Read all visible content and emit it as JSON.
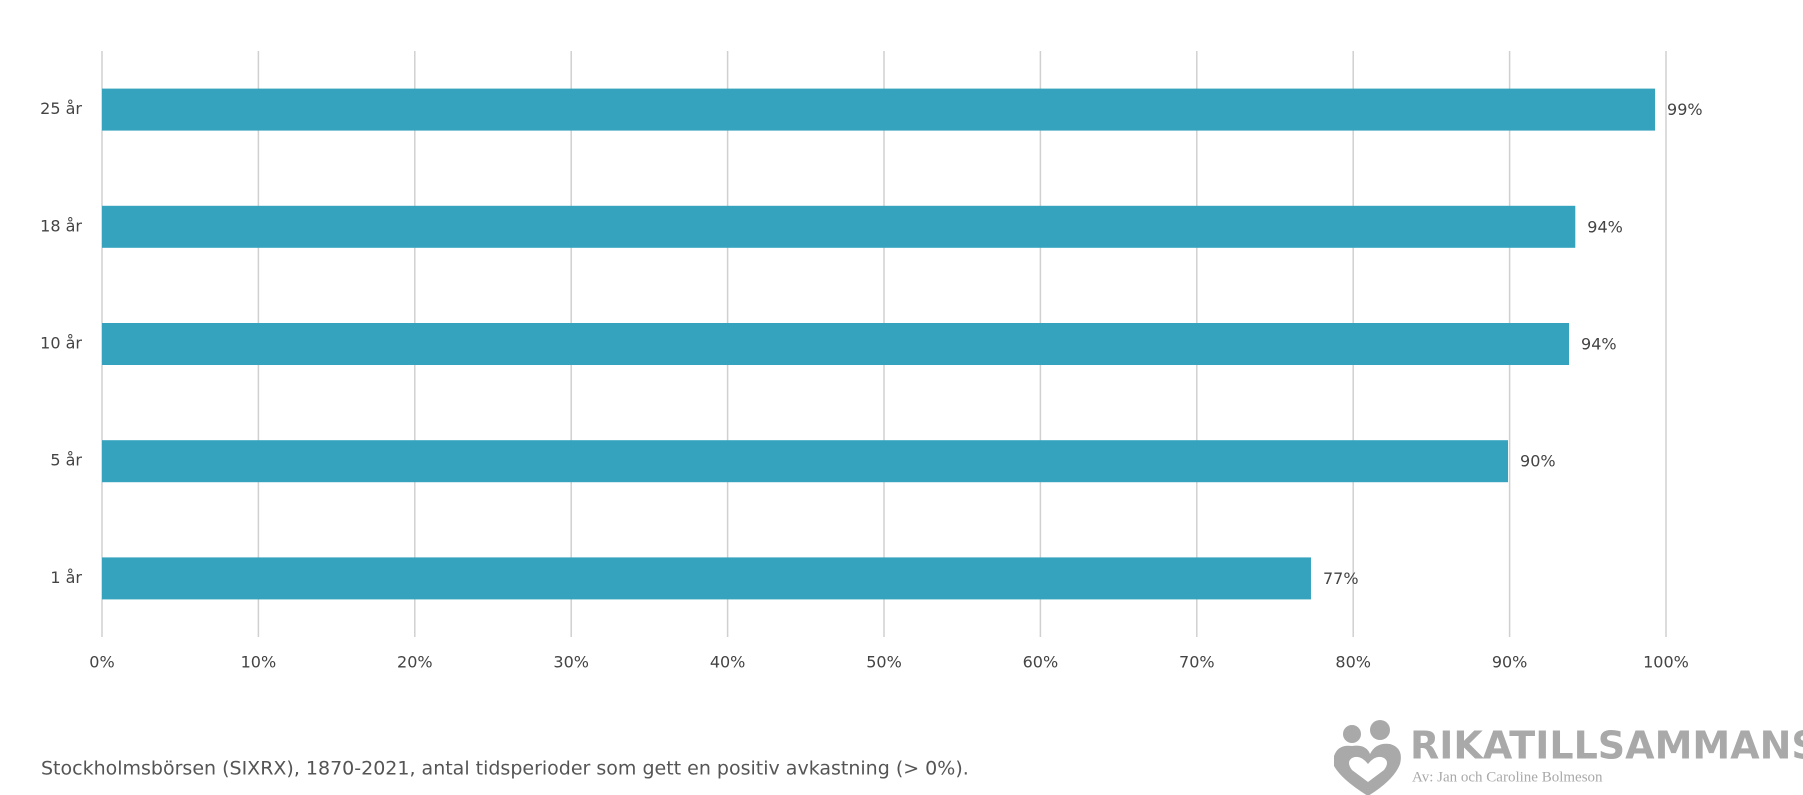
{
  "chart_data": {
    "type": "bar",
    "orientation": "horizontal",
    "categories": [
      "25 år",
      "18 år",
      "10 år",
      "5 år",
      "1 år"
    ],
    "values": [
      99.3,
      94.2,
      93.8,
      89.9,
      77.3
    ],
    "value_labels": [
      "99%",
      "94%",
      "94%",
      "90%",
      "77%"
    ],
    "color": "#35a3be",
    "xlim": [
      0,
      100
    ],
    "xticks": [
      {
        "value": 0,
        "label": "0%"
      },
      {
        "value": 10,
        "label": "10%"
      },
      {
        "value": 20,
        "label": "20%"
      },
      {
        "value": 30,
        "label": "30%"
      },
      {
        "value": 40,
        "label": "40%"
      },
      {
        "value": 50,
        "label": "50%"
      },
      {
        "value": 60,
        "label": "60%"
      },
      {
        "value": 70,
        "label": "70%"
      },
      {
        "value": 80,
        "label": "80%"
      },
      {
        "value": 90,
        "label": "90%"
      },
      {
        "value": 100,
        "label": "100%"
      }
    ],
    "grid": true,
    "caption": "Stockholmsbörsen (SIXRX), 1870-2021, antal tidsperioder som gett en positiv avkastning (> 0%)."
  },
  "logo": {
    "name": "RIKATILLSAMMANS",
    "tagline": "Av: Jan och Caroline Bolmeson"
  }
}
